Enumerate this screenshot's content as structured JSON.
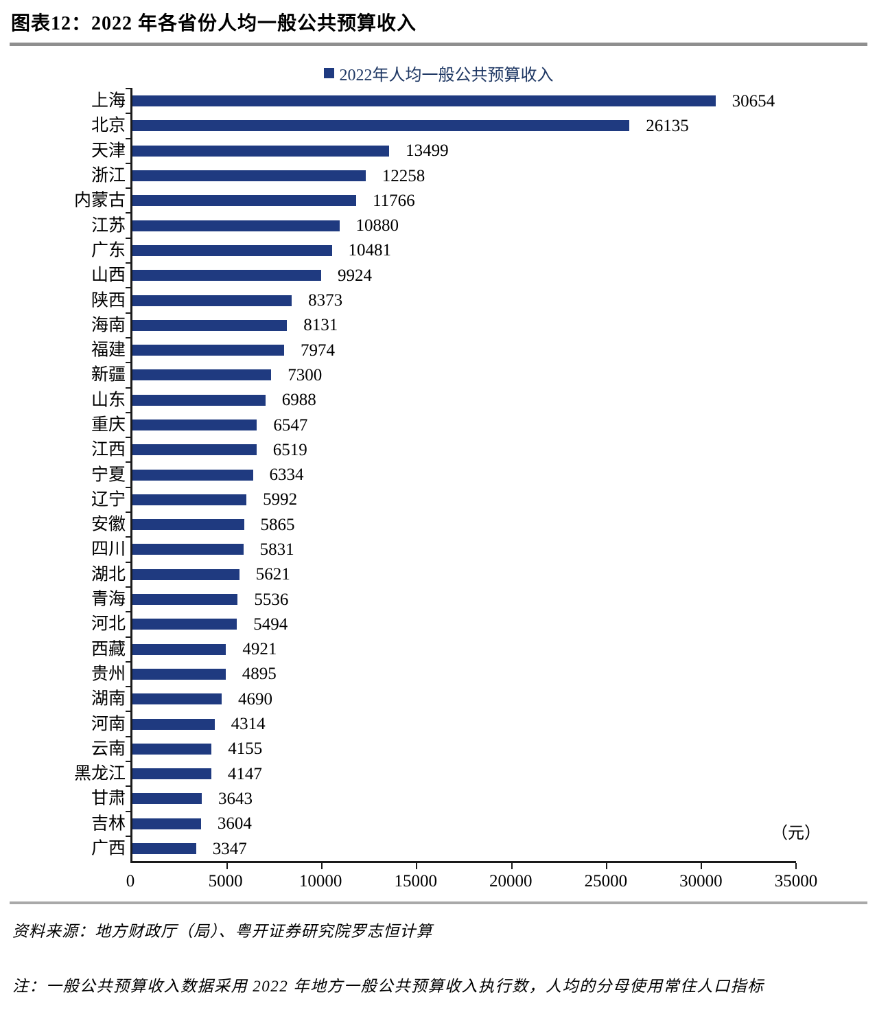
{
  "figure": {
    "title": "图表12：2022 年各省份人均一般公共预算收入",
    "unit_label": "（元）",
    "source": "资料来源：地方财政厅（局）、粤开证券研究院罗志恒计算",
    "note": "注：一般公共预算收入数据采用 2022 年地方一般公共预算收入执行数，人均的分母使用常住人口指标"
  },
  "colors": {
    "bar": "#1F3A80",
    "legend_text": "#1F3864",
    "axis": "#1a1a1a",
    "divider_gray": "#8f8f8f"
  },
  "chart_data": {
    "type": "bar",
    "orientation": "horizontal",
    "title": "2022年各省份人均一般公共预算收入",
    "legend_label": "2022年人均一般公共预算收入",
    "legend_position": "top-center",
    "unit": "元",
    "xlim": [
      0,
      35000
    ],
    "x_ticks": [
      0,
      5000,
      10000,
      15000,
      20000,
      25000,
      30000,
      35000
    ],
    "grid": false,
    "value_labels_shown": true,
    "categories": [
      "上海",
      "北京",
      "天津",
      "浙江",
      "内蒙古",
      "江苏",
      "广东",
      "山西",
      "陕西",
      "海南",
      "福建",
      "新疆",
      "山东",
      "重庆",
      "江西",
      "宁夏",
      "辽宁",
      "安徽",
      "四川",
      "湖北",
      "青海",
      "河北",
      "西藏",
      "贵州",
      "湖南",
      "河南",
      "云南",
      "黑龙江",
      "甘肃",
      "吉林",
      "广西"
    ],
    "values": [
      30654,
      26135,
      13499,
      12258,
      11766,
      10880,
      10481,
      9924,
      8373,
      8131,
      7974,
      7300,
      6988,
      6547,
      6519,
      6334,
      5992,
      5865,
      5831,
      5621,
      5536,
      5494,
      4921,
      4895,
      4690,
      4314,
      4155,
      4147,
      3643,
      3604,
      3347
    ]
  }
}
